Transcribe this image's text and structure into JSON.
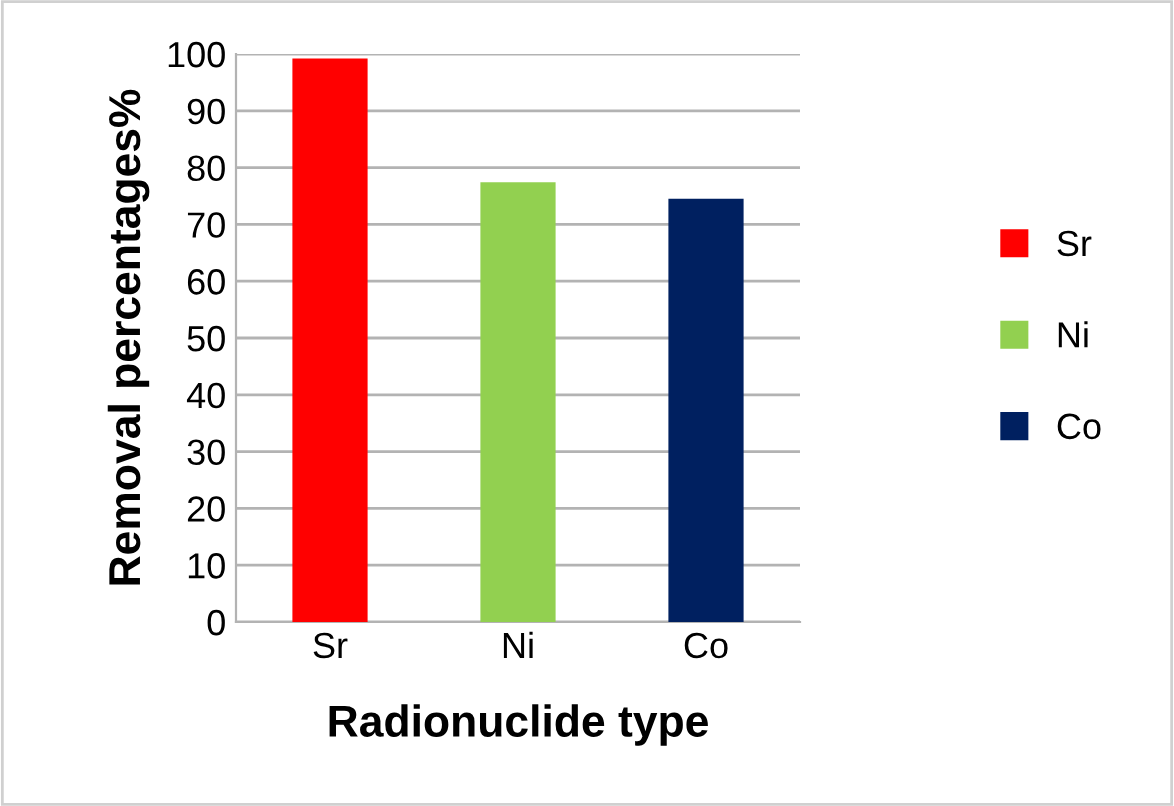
{
  "chart_data": {
    "type": "bar",
    "xlabel": "Radionuclide type",
    "ylabel": "Removal percentages%",
    "categories": [
      "Sr",
      "Ni",
      "Co"
    ],
    "series": [
      {
        "name": "Sr",
        "color": "#ff0000",
        "values": [
          99.2,
          null,
          null
        ]
      },
      {
        "name": "Ni",
        "color": "#92d050",
        "values": [
          null,
          77.4,
          null
        ]
      },
      {
        "name": "Co",
        "color": "#002060",
        "values": [
          null,
          null,
          74.5
        ]
      }
    ],
    "ylim": [
      0,
      100
    ],
    "yticks": [
      0,
      10,
      20,
      30,
      40,
      50,
      60,
      70,
      80,
      90,
      100
    ],
    "grid": "y",
    "legend": "right"
  }
}
